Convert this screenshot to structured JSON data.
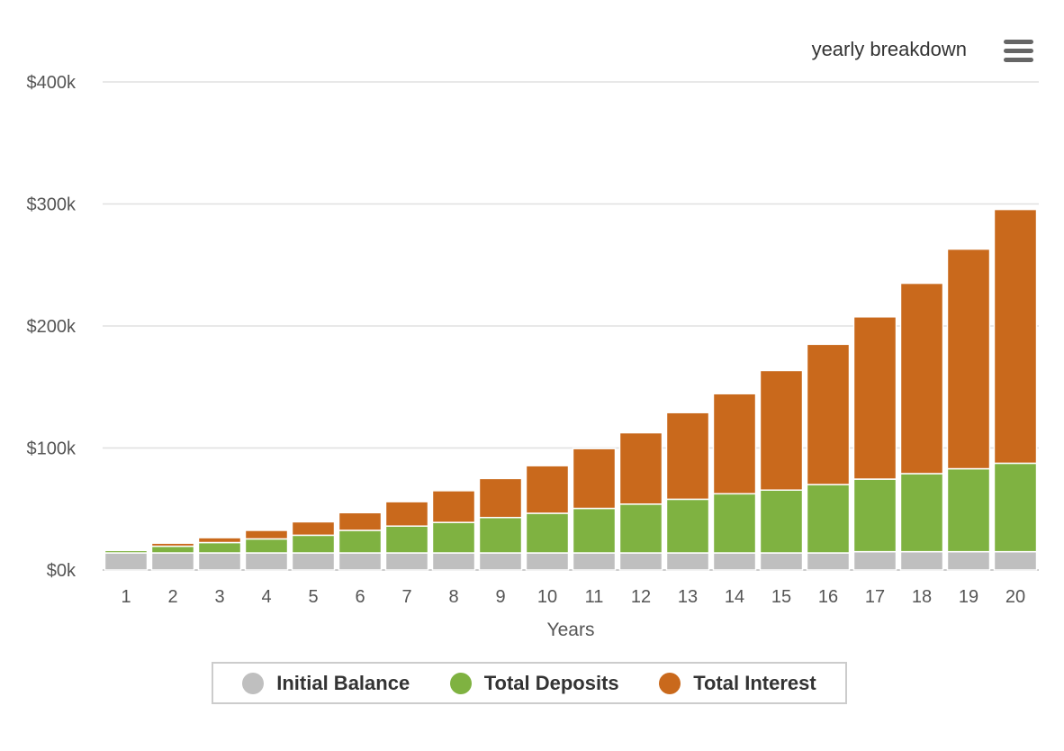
{
  "header": {
    "title": "yearly breakdown",
    "menu_icon": "hamburger-menu-icon"
  },
  "colors": {
    "initial": "#bfbfbf",
    "deposits": "#7fb241",
    "interest": "#c9691c",
    "grid": "#e0e0e0",
    "axis_text": "#555555"
  },
  "chart_data": {
    "type": "bar",
    "stacked": true,
    "categories": [
      "1",
      "2",
      "3",
      "4",
      "5",
      "6",
      "7",
      "8",
      "9",
      "10",
      "11",
      "12",
      "13",
      "14",
      "15",
      "16",
      "17",
      "18",
      "19",
      "20"
    ],
    "series": [
      {
        "name": "Initial Balance",
        "color": "#bfbfbf",
        "values": [
          14000,
          14000,
          14000,
          14000,
          14000,
          14000,
          14000,
          14000,
          14000,
          14000,
          14000,
          14000,
          14000,
          14000,
          14000,
          14000,
          15000,
          15000,
          15000,
          15000
        ]
      },
      {
        "name": "Total Deposits",
        "color": "#7fb241",
        "values": [
          2000,
          5500,
          8500,
          11500,
          14500,
          18500,
          22000,
          25000,
          29000,
          32500,
          36500,
          40000,
          44000,
          48500,
          51500,
          56000,
          59500,
          64000,
          68000,
          72500
        ]
      },
      {
        "name": "Total Interest",
        "color": "#c9691c",
        "values": [
          0,
          2500,
          4000,
          7000,
          11000,
          14500,
          20000,
          26000,
          32000,
          39000,
          49000,
          58500,
          71000,
          82000,
          98000,
          115000,
          133000,
          156000,
          180000,
          208000
        ]
      }
    ],
    "xlabel": "Years",
    "ylabel": "",
    "ylim": [
      0,
      400000
    ],
    "yticks": [
      0,
      100000,
      200000,
      300000,
      400000
    ],
    "ytick_labels": [
      "$0k",
      "$100k",
      "$200k",
      "$300k",
      "$400k"
    ],
    "grid": true,
    "legend_position": "bottom-center"
  }
}
